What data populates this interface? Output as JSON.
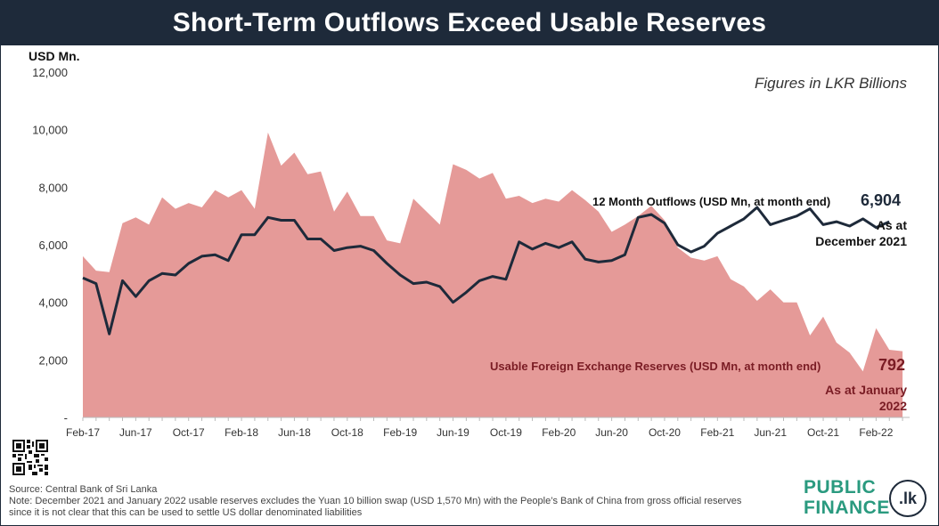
{
  "title": "Short-Term Outflows Exceed Usable Reserves",
  "unit_label": "USD Mn.",
  "figures_note": "Figures in LKR Billions",
  "outflow_label": "12 Month Outflows (USD Mn, at month end)",
  "outflow_value": "6,904",
  "outflow_asat": [
    "As at",
    "December 2021"
  ],
  "reserves_label": "Usable Foreign Exchange Reserves (USD Mn, at month end)",
  "reserves_value": "792",
  "reserves_asat": [
    "As at January",
    "2022"
  ],
  "source": "Source: Central Bank of Sri Lanka",
  "note_line1": "Note: December 2021 and January 2022 usable  reserves excludes the Yuan 10 billion swap (USD 1,570 Mn) with the People’s Bank of China from gross official reserves",
  "note_line2": "since it is not clear that this can be used to settle US dollar denominated liabilities",
  "logo": {
    "line1": "PUBLIC",
    "line2": "FINANCE",
    "badge": ".lk"
  },
  "colors": {
    "title_bg": "#1e2a3a",
    "area": "#e59a98",
    "line": "#1e2a3a",
    "reserves_text": "#7a1c24",
    "logo_green": "#2a9a7f"
  },
  "chart_data": {
    "type": "area",
    "y_axis": {
      "min": 0,
      "max": 12000,
      "ticks": [
        "-",
        "2,000",
        "4,000",
        "6,000",
        "8,000",
        "10,000",
        "12,000"
      ]
    },
    "x_tick_labels": [
      "Feb-17",
      "Jun-17",
      "Oct-17",
      "Feb-18",
      "Jun-18",
      "Oct-18",
      "Feb-19",
      "Jun-19",
      "Oct-19",
      "Feb-20",
      "Jun-20",
      "Oct-20",
      "Feb-21",
      "Jun-21",
      "Oct-21",
      "Feb-22"
    ],
    "x_start": "Feb-17",
    "x_end": "Mar-22",
    "series": [
      {
        "name": "Usable Foreign Exchange Reserves (USD Mn, at month end)",
        "type": "area",
        "values": [
          5600,
          5100,
          5050,
          6750,
          6950,
          6700,
          7650,
          7250,
          7450,
          7300,
          7900,
          7650,
          7900,
          7250,
          9900,
          8750,
          9200,
          8450,
          8550,
          7150,
          7850,
          7000,
          7000,
          6150,
          6050,
          7600,
          7150,
          6700,
          8800,
          8600,
          8300,
          8500,
          7600,
          7700,
          7450,
          7600,
          7500,
          7900,
          7550,
          7150,
          6450,
          6700,
          7000,
          7350,
          6850,
          5900,
          5550,
          5450,
          5600,
          4800,
          4550,
          4050,
          4450,
          4000,
          4000,
          2850,
          3500,
          2600,
          2250,
          1600,
          3100,
          2350,
          2300
        ],
        "last_point": "Mar-22"
      },
      {
        "name": "12 Month Outflows (USD Mn, at month end)",
        "type": "line",
        "values": [
          4850,
          4650,
          2900,
          4750,
          4200,
          4750,
          5000,
          4950,
          5350,
          5600,
          5650,
          5450,
          6350,
          6350,
          6950,
          6850,
          6850,
          6200,
          6200,
          5800,
          5900,
          5950,
          5800,
          5350,
          4950,
          4650,
          4700,
          4550,
          4000,
          4350,
          4750,
          4900,
          4800,
          6100,
          5850,
          6050,
          5900,
          6100,
          5500,
          5400,
          5450,
          5650,
          6950,
          7050,
          6750,
          6000,
          5750,
          5950,
          6400,
          6650,
          6900,
          7300,
          6700,
          6850,
          7000,
          7250,
          6700,
          6800,
          6650,
          6900,
          6600,
          6800
        ],
        "last_point": "Feb-22"
      }
    ]
  }
}
